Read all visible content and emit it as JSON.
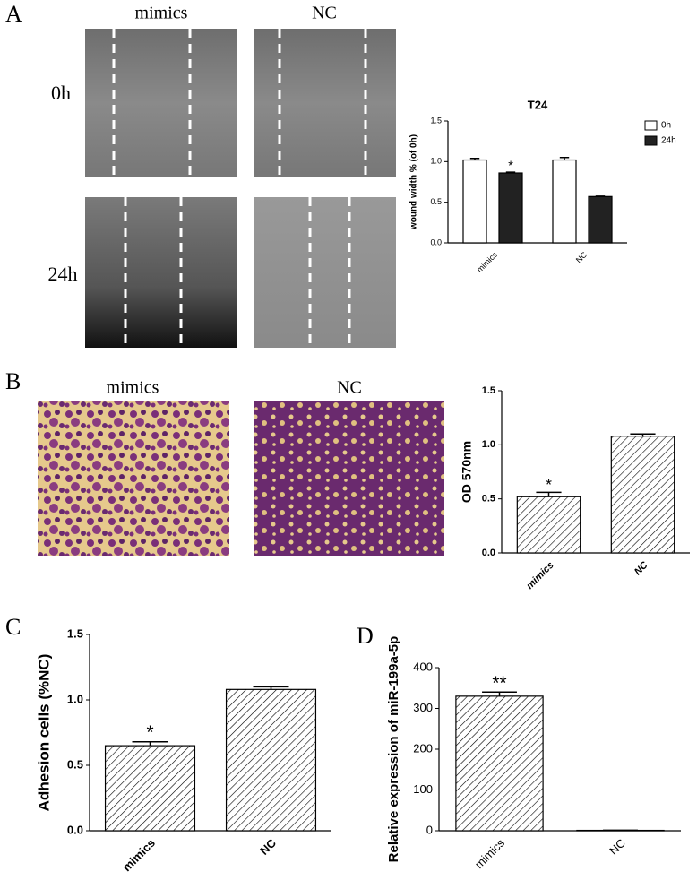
{
  "panel_labels": [
    "A",
    "B",
    "C",
    "D"
  ],
  "images": {
    "A": {
      "columns": [
        "mimics",
        "NC"
      ],
      "rows": [
        "0h",
        "24h"
      ]
    },
    "B": {
      "columns": [
        "mimics",
        "NC"
      ]
    }
  },
  "chart_data": [
    {
      "type": "bar",
      "title": "T24",
      "ylabel": "wound width % (of 0h)",
      "categories": [
        "mimics",
        "NC"
      ],
      "series": [
        {
          "name": "0h",
          "color": "#ffffff",
          "values": [
            1.02,
            1.02
          ],
          "errors": [
            0.02,
            0.03
          ]
        },
        {
          "name": "24h",
          "color": "#222222",
          "values": [
            0.86,
            0.57
          ],
          "errors": [
            0.01,
            0.005
          ],
          "significance": [
            "*",
            null
          ]
        }
      ],
      "ylim": [
        0,
        1.5
      ],
      "yticks": [
        {
          "value": 0,
          "label": "0.0"
        },
        0.5,
        {
          "value": 1,
          "label": "1.0"
        },
        1.5
      ],
      "legend": "right"
    },
    {
      "type": "bar",
      "ylabel": "OD 570nm",
      "categories": [
        "mimics",
        "NC"
      ],
      "values": [
        0.52,
        1.08
      ],
      "errors": [
        0.04,
        0.02
      ],
      "significance": [
        "*",
        null
      ],
      "color": "#000000",
      "hatch": true,
      "ylim": [
        0,
        1.5
      ],
      "yticks": [
        {
          "value": 0,
          "label": "0.0"
        },
        0.5,
        {
          "value": 1,
          "label": "1.0"
        },
        1.5
      ]
    },
    {
      "type": "bar",
      "ylabel": "Adhesion cells (%NC)",
      "categories": [
        "mimics",
        "NC"
      ],
      "values": [
        0.65,
        1.08
      ],
      "errors": [
        0.03,
        0.02
      ],
      "significance": [
        "*",
        null
      ],
      "color": "#000000",
      "hatch": true,
      "ylim": [
        0,
        1.5
      ],
      "yticks": [
        {
          "value": 0,
          "label": "0.0"
        },
        0.5,
        {
          "value": 1,
          "label": "1.0"
        },
        1.5
      ]
    },
    {
      "type": "bar",
      "ylabel": "Relative expression of miR-199a-5p",
      "categories": [
        "mimics",
        "NC"
      ],
      "values": [
        330,
        1
      ],
      "errors": [
        10,
        0.5
      ],
      "significance": [
        "**",
        null
      ],
      "color": "#000000",
      "hatch": true,
      "ylim": [
        0,
        400
      ],
      "yticks": [
        0,
        100,
        200,
        300,
        400
      ]
    }
  ]
}
